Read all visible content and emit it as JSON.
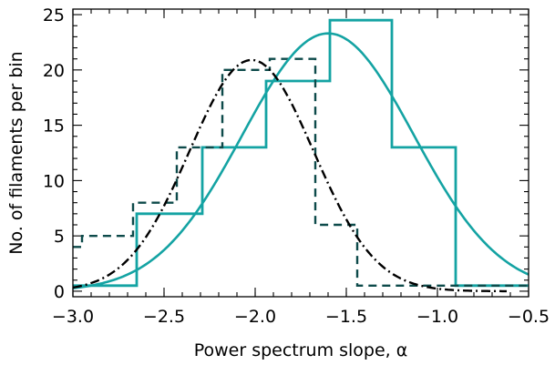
{
  "chart_data": {
    "type": "line",
    "title": "",
    "xlabel": "Power spectrum slope, α",
    "ylabel": "No. of filaments per bin",
    "xlim": [
      -3.0,
      -0.5
    ],
    "ylim": [
      -0.5,
      25.5
    ],
    "grid": false,
    "x_ticks": [
      -3.0,
      -2.5,
      -2.0,
      -1.5,
      -1.0,
      -0.5
    ],
    "x_tick_labels": [
      "−3.0",
      "−2.5",
      "−2.0",
      "−1.5",
      "−1.0",
      "−0.5"
    ],
    "y_ticks": [
      0,
      5,
      10,
      15,
      20,
      25
    ],
    "y_tick_labels": [
      "0",
      "5",
      "10",
      "15",
      "20",
      "25"
    ],
    "colors": {
      "teal": "#14a3a3",
      "dark_teal": "#0d4a4a",
      "black": "#000000"
    },
    "series": [
      {
        "kind": "histogram-steps",
        "style": "solid",
        "color": "#14a3a3",
        "edges": [
          -3.0,
          -2.65,
          -2.29,
          -1.94,
          -1.59,
          -1.25,
          -0.9,
          -0.5
        ],
        "values": [
          0.5,
          7,
          13,
          19,
          24.5,
          13,
          0.5
        ]
      },
      {
        "kind": "histogram-steps",
        "style": "dashed",
        "color": "#0d4a4a",
        "edges": [
          -3.0,
          -2.95,
          -2.67,
          -2.43,
          -2.18,
          -1.92,
          -1.67,
          -1.44,
          -0.5
        ],
        "values": [
          4,
          5,
          8,
          13,
          20,
          21,
          6,
          0.5
        ]
      },
      {
        "kind": "gaussian-fit",
        "style": "solid",
        "color": "#14a3a3",
        "amplitude": 23.3,
        "mean": -1.6,
        "sigma": 0.47,
        "x_range": [
          -3.0,
          -0.5
        ]
      },
      {
        "kind": "gaussian-fit",
        "style": "dash-dot",
        "color": "#000000",
        "amplitude": 20.9,
        "mean": -2.02,
        "sigma": 0.34,
        "x_range": [
          -3.0,
          -0.62
        ]
      }
    ]
  }
}
